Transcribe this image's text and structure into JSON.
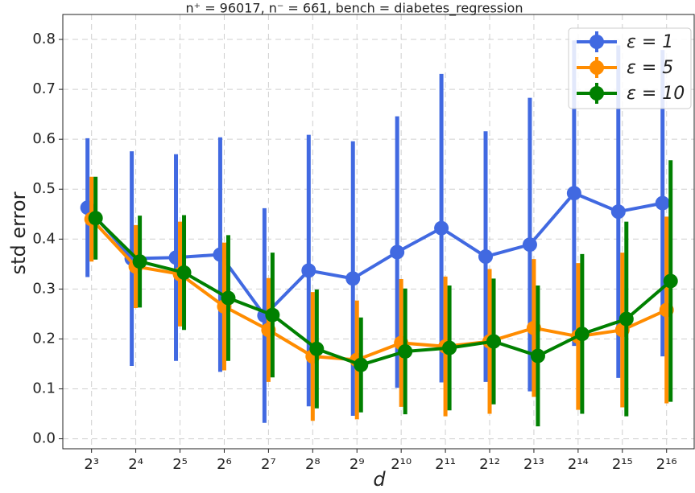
{
  "chart_data": {
    "type": "errorbar-line",
    "title": "n⁺ = 96017, n⁻ = 661, bench = diabetes_regression",
    "x_label": "d",
    "y_label": "std error",
    "x": [
      8,
      16,
      32,
      64,
      128,
      256,
      512,
      1024,
      2048,
      4096,
      8192,
      16384,
      32768,
      65536
    ],
    "xscale": "log",
    "log_base": 2,
    "xlim": [
      5.1,
      101000
    ],
    "xticks": [
      {
        "value": 8,
        "label": "2³"
      },
      {
        "value": 16,
        "label": "2⁴"
      },
      {
        "value": 32,
        "label": "2⁵"
      },
      {
        "value": 64,
        "label": "2⁶"
      },
      {
        "value": 128,
        "label": "2⁷"
      },
      {
        "value": 256,
        "label": "2⁸"
      },
      {
        "value": 512,
        "label": "2⁹"
      },
      {
        "value": 1024,
        "label": "2¹⁰"
      },
      {
        "value": 2048,
        "label": "2¹¹"
      },
      {
        "value": 4096,
        "label": "2¹²"
      },
      {
        "value": 8192,
        "label": "2¹³"
      },
      {
        "value": 16384,
        "label": "2¹⁴"
      },
      {
        "value": 32768,
        "label": "2¹⁵"
      },
      {
        "value": 65536,
        "label": "2¹⁶"
      }
    ],
    "ylim": [
      -0.02,
      0.85
    ],
    "yticks": [
      {
        "value": 0,
        "label": "0.0"
      },
      0.1,
      0.2,
      0.3,
      0.4,
      0.5,
      0.6,
      0.7,
      0.8
    ],
    "grid": true,
    "legend": "upper right",
    "series": [
      {
        "name": "ε = 1",
        "color": "#4169e1",
        "values": [
          0.463,
          0.361,
          0.363,
          0.369,
          0.247,
          0.337,
          0.321,
          0.374,
          0.422,
          0.365,
          0.389,
          0.492,
          0.455,
          0.472
        ],
        "errors": [
          0.139,
          0.215,
          0.207,
          0.235,
          0.215,
          0.272,
          0.275,
          0.272,
          0.309,
          0.251,
          0.294,
          0.306,
          0.333,
          0.307
        ]
      },
      {
        "name": "ε = 5",
        "color": "#ff8c00",
        "values": [
          0.44,
          0.345,
          0.33,
          0.265,
          0.218,
          0.165,
          0.158,
          0.192,
          0.185,
          0.195,
          0.222,
          0.205,
          0.218,
          0.258
        ],
        "errors": [
          0.085,
          0.083,
          0.105,
          0.128,
          0.104,
          0.129,
          0.119,
          0.128,
          0.14,
          0.145,
          0.138,
          0.147,
          0.155,
          0.187
        ]
      },
      {
        "name": "ε = 10",
        "color": "#008000",
        "values": [
          0.442,
          0.355,
          0.333,
          0.282,
          0.248,
          0.18,
          0.148,
          0.175,
          0.182,
          0.195,
          0.166,
          0.21,
          0.24,
          0.316
        ],
        "errors": [
          0.083,
          0.092,
          0.115,
          0.126,
          0.125,
          0.119,
          0.095,
          0.126,
          0.125,
          0.126,
          0.141,
          0.16,
          0.195,
          0.242
        ]
      }
    ]
  }
}
